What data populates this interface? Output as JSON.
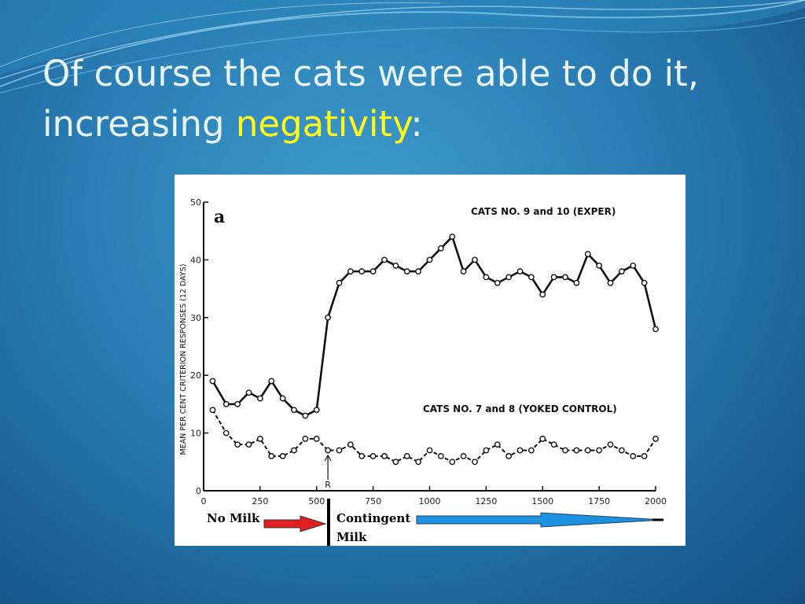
{
  "slide": {
    "title_part1": "Of course the cats were able to do it, increasing ",
    "title_highlight": "negativity",
    "title_part2": ":"
  },
  "colors": {
    "highlight": "#ffff1a",
    "arrow_red": "#e02020",
    "arrow_blue": "#1e90e0"
  },
  "chart_data": {
    "type": "line",
    "panel_label": "a",
    "ylabel": "MEAN PER CENT CRITERION RESPONSES (12 DAYS)",
    "xlabel": "",
    "xlim": [
      0,
      2000
    ],
    "ylim": [
      0,
      50
    ],
    "xticks": [
      "0",
      "250",
      "500",
      "750",
      "1000",
      "1250",
      "1500",
      "1750",
      "2000"
    ],
    "yticks": [
      "0",
      "10",
      "20",
      "30",
      "40",
      "50"
    ],
    "grid": false,
    "marker_label": "R",
    "marker_x": 550,
    "series": [
      {
        "name": "CATS NO. 9 and 10 (EXPER)",
        "style": "solid",
        "x": [
          40,
          100,
          150,
          200,
          250,
          300,
          350,
          400,
          450,
          500,
          550,
          600,
          650,
          700,
          750,
          800,
          850,
          900,
          950,
          1000,
          1050,
          1100,
          1150,
          1200,
          1250,
          1300,
          1350,
          1400,
          1450,
          1500,
          1550,
          1600,
          1650,
          1700,
          1750,
          1800,
          1850,
          1900,
          1950,
          2000
        ],
        "y": [
          19,
          15,
          15,
          17,
          16,
          19,
          16,
          14,
          13,
          14,
          30,
          36,
          38,
          38,
          38,
          40,
          39,
          38,
          38,
          40,
          42,
          44,
          38,
          40,
          37,
          36,
          37,
          38,
          37,
          34,
          37,
          37,
          36,
          41,
          39,
          36,
          38,
          39,
          36,
          28
        ]
      },
      {
        "name": "CATS NO. 7 and 8 (YOKED CONTROL)",
        "style": "dashed",
        "x": [
          40,
          100,
          150,
          200,
          250,
          300,
          350,
          400,
          450,
          500,
          550,
          600,
          650,
          700,
          750,
          800,
          850,
          900,
          950,
          1000,
          1050,
          1100,
          1150,
          1200,
          1250,
          1300,
          1350,
          1400,
          1450,
          1500,
          1550,
          1600,
          1650,
          1700,
          1750,
          1800,
          1850,
          1900,
          1950,
          2000
        ],
        "y": [
          14,
          10,
          8,
          8,
          9,
          6,
          6,
          7,
          9,
          9,
          7,
          7,
          8,
          6,
          6,
          6,
          5,
          6,
          5,
          7,
          6,
          5,
          6,
          5,
          7,
          8,
          6,
          7,
          7,
          9,
          8,
          7,
          7,
          7,
          7,
          8,
          7,
          6,
          6,
          9
        ]
      }
    ],
    "annotations": {
      "left_label": "No Milk",
      "right_label_line1": "Contingent",
      "right_label_line2": "Milk"
    }
  }
}
